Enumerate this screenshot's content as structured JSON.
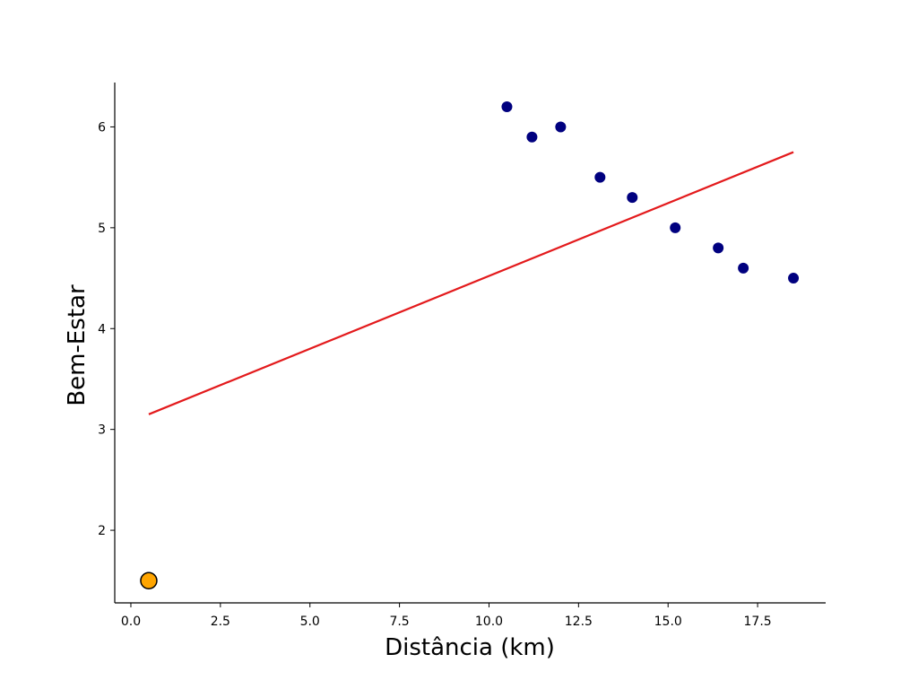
{
  "chart_data": {
    "type": "scatter",
    "title": "",
    "xlabel": "Distância (km)",
    "ylabel": "Bem-Estar",
    "xlim": [
      -0.45,
      19.4
    ],
    "ylim": [
      1.28,
      6.44
    ],
    "x_ticks": [
      0.0,
      2.5,
      5.0,
      7.5,
      10.0,
      12.5,
      15.0,
      17.5
    ],
    "x_tick_labels": [
      "0.0",
      "2.5",
      "5.0",
      "7.5",
      "10.0",
      "12.5",
      "15.0",
      "17.5"
    ],
    "y_ticks": [
      2,
      3,
      4,
      5,
      6
    ],
    "y_tick_labels": [
      "2",
      "3",
      "4",
      "5",
      "6"
    ],
    "grid": false,
    "series": [
      {
        "type": "scatter",
        "color": "#00007f",
        "points": [
          {
            "x": 10.5,
            "y": 6.2
          },
          {
            "x": 11.2,
            "y": 5.9
          },
          {
            "x": 12.0,
            "y": 6.0
          },
          {
            "x": 13.1,
            "y": 5.5
          },
          {
            "x": 14.0,
            "y": 5.3
          },
          {
            "x": 15.2,
            "y": 5.0
          },
          {
            "x": 16.4,
            "y": 4.8
          },
          {
            "x": 17.1,
            "y": 4.6
          },
          {
            "x": 18.5,
            "y": 4.5
          }
        ]
      },
      {
        "type": "scatter",
        "color": "#ffa500",
        "edge_color": "#000000",
        "points": [
          {
            "x": 0.5,
            "y": 1.5
          }
        ]
      },
      {
        "type": "line",
        "color": "#e31a1c",
        "points": [
          {
            "x": 0.5,
            "y": 3.15
          },
          {
            "x": 18.5,
            "y": 5.75
          }
        ]
      }
    ]
  }
}
